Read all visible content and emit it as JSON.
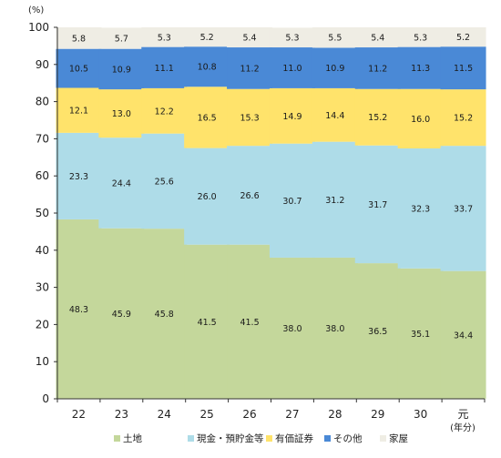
{
  "chart_data": {
    "type": "bar",
    "stacked": true,
    "y_unit": "(%)",
    "x_unit": "(年分)",
    "ylim": [
      0,
      100
    ],
    "y_ticks": [
      0,
      10,
      20,
      30,
      40,
      50,
      60,
      70,
      80,
      90,
      100
    ],
    "grid": false,
    "legend_position": "bottom",
    "categories": [
      "22",
      "23",
      "24",
      "25",
      "26",
      "27",
      "28",
      "29",
      "30",
      "元"
    ],
    "series": [
      {
        "name": "土地",
        "color": "#c4d79b",
        "values": [
          48.3,
          45.9,
          45.8,
          41.5,
          41.5,
          38.0,
          38.0,
          36.5,
          35.1,
          34.4
        ]
      },
      {
        "name": "現金・預貯金等",
        "color": "#aedce8",
        "values": [
          23.3,
          24.4,
          25.6,
          26.0,
          26.6,
          30.7,
          31.2,
          31.7,
          32.3,
          33.7
        ]
      },
      {
        "name": "有価証券",
        "color": "#ffe36b",
        "values": [
          12.1,
          13.0,
          12.2,
          16.5,
          15.3,
          14.9,
          14.4,
          15.2,
          16.0,
          15.2
        ]
      },
      {
        "name": "その他",
        "color": "#4a89d6",
        "values": [
          10.5,
          10.9,
          11.1,
          10.8,
          11.2,
          11.0,
          10.9,
          11.2,
          11.3,
          11.5
        ]
      },
      {
        "name": "家屋",
        "color": "#efede4",
        "values": [
          5.8,
          5.7,
          5.3,
          5.2,
          5.4,
          5.3,
          5.5,
          5.4,
          5.3,
          5.2
        ]
      }
    ]
  }
}
